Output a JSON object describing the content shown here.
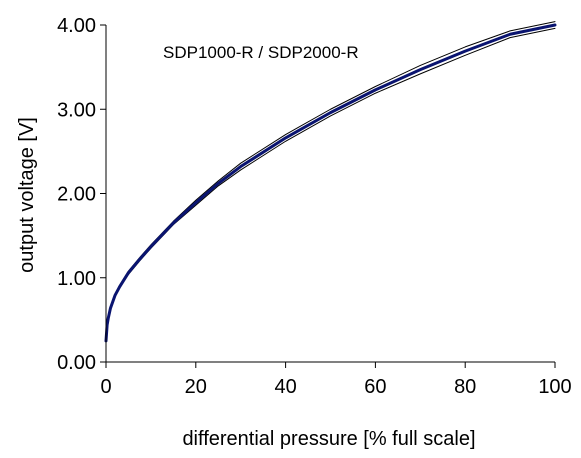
{
  "chart_data": {
    "type": "line",
    "title": "",
    "xlabel": "differential pressure [% full scale]",
    "ylabel": "output voltage [V]",
    "annotation": "SDP1000-R / SDP2000-R",
    "xlim": [
      0,
      100
    ],
    "ylim": [
      0,
      4
    ],
    "xticks": [
      "0",
      "20",
      "40",
      "60",
      "80",
      "100"
    ],
    "yticks": [
      "0.00",
      "1.00",
      "2.00",
      "3.00",
      "4.00"
    ],
    "grid": false,
    "legend": "none",
    "x": [
      0,
      0.25,
      0.5,
      1,
      2,
      3,
      5,
      7.5,
      10,
      15,
      20,
      25,
      30,
      40,
      50,
      60,
      70,
      80,
      90,
      100
    ],
    "series": [
      {
        "color": "#0a1470",
        "values": [
          0.25,
          0.44,
          0.52,
          0.64,
          0.79,
          0.89,
          1.06,
          1.22,
          1.37,
          1.65,
          1.89,
          2.12,
          2.32,
          2.66,
          2.96,
          3.23,
          3.47,
          3.69,
          3.89,
          4.0
        ]
      },
      {
        "color": "#000000",
        "values": [
          0.25,
          0.45,
          0.53,
          0.65,
          0.8,
          0.91,
          1.08,
          1.24,
          1.39,
          1.67,
          1.92,
          2.15,
          2.36,
          2.7,
          3.0,
          3.27,
          3.52,
          3.74,
          3.93,
          4.04
        ]
      },
      {
        "color": "#000000",
        "values": [
          0.25,
          0.43,
          0.51,
          0.63,
          0.78,
          0.88,
          1.04,
          1.2,
          1.35,
          1.63,
          1.86,
          2.09,
          2.28,
          2.62,
          2.92,
          3.19,
          3.42,
          3.64,
          3.85,
          3.96
        ]
      }
    ]
  }
}
